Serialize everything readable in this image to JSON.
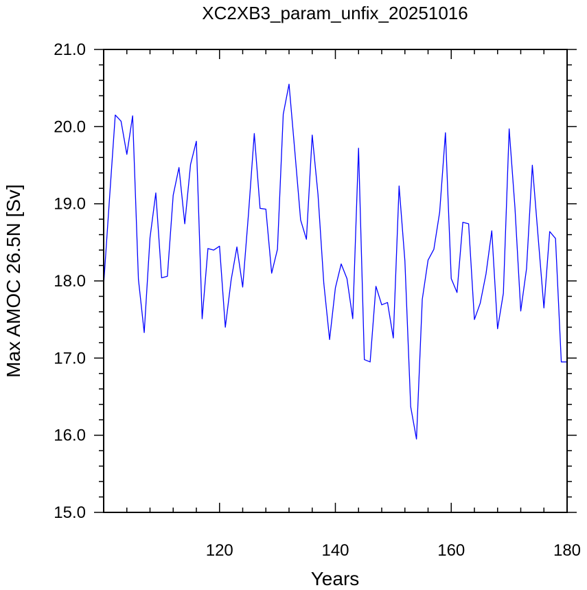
{
  "chart_data": {
    "type": "line",
    "title": "XC2XB3_param_unfix_20251016",
    "xlabel": "Years",
    "ylabel": "Max AMOC 26.5N [Sv]",
    "xlim": [
      100,
      180
    ],
    "ylim": [
      15.0,
      21.0
    ],
    "x_ticks": [
      120,
      140,
      160,
      180
    ],
    "x_tick_labels": [
      "120",
      "140",
      "160",
      "180"
    ],
    "y_ticks": [
      15.0,
      16.0,
      17.0,
      18.0,
      19.0,
      20.0,
      21.0
    ],
    "y_tick_labels": [
      "15.0",
      "16.0",
      "17.0",
      "18.0",
      "19.0",
      "20.0",
      "21.0"
    ],
    "grid": false,
    "legend": "none",
    "series": [
      {
        "color": "#0000ff",
        "x": [
          100,
          101,
          102,
          103,
          104,
          105,
          106,
          107,
          108,
          109,
          110,
          111,
          112,
          113,
          114,
          115,
          116,
          117,
          118,
          119,
          120,
          121,
          122,
          123,
          124,
          125,
          126,
          127,
          128,
          129,
          130,
          131,
          132,
          133,
          134,
          135,
          136,
          137,
          138,
          139,
          140,
          141,
          142,
          143,
          144,
          145,
          146,
          147,
          148,
          149,
          150,
          151,
          152,
          153,
          154,
          155,
          156,
          157,
          158,
          159,
          160,
          161,
          162,
          163,
          164,
          165,
          166,
          167,
          168,
          169,
          170,
          171,
          172,
          173,
          174,
          175,
          176,
          177,
          178,
          179,
          180
        ],
        "values": [
          17.95,
          19.06,
          20.15,
          20.07,
          19.64,
          20.14,
          18.02,
          17.33,
          18.56,
          19.14,
          18.04,
          18.06,
          19.11,
          19.47,
          18.74,
          19.51,
          19.81,
          17.51,
          18.42,
          18.4,
          18.45,
          17.4,
          18.01,
          18.44,
          17.92,
          18.87,
          19.91,
          18.94,
          18.93,
          18.1,
          18.41,
          20.16,
          20.55,
          19.68,
          18.79,
          18.54,
          19.89,
          19.12,
          17.97,
          17.24,
          17.91,
          18.22,
          18.03,
          17.51,
          19.72,
          16.98,
          16.95,
          17.93,
          17.69,
          17.72,
          17.26,
          19.23,
          18.26,
          16.37,
          15.95,
          17.76,
          18.27,
          18.41,
          18.89,
          19.92,
          18.03,
          17.85,
          18.76,
          18.74,
          17.5,
          17.71,
          18.09,
          18.65,
          17.38,
          17.84,
          19.97,
          18.95,
          17.61,
          18.16,
          19.5,
          18.57,
          17.65,
          18.64,
          18.55,
          16.95,
          16.95
        ]
      }
    ]
  }
}
